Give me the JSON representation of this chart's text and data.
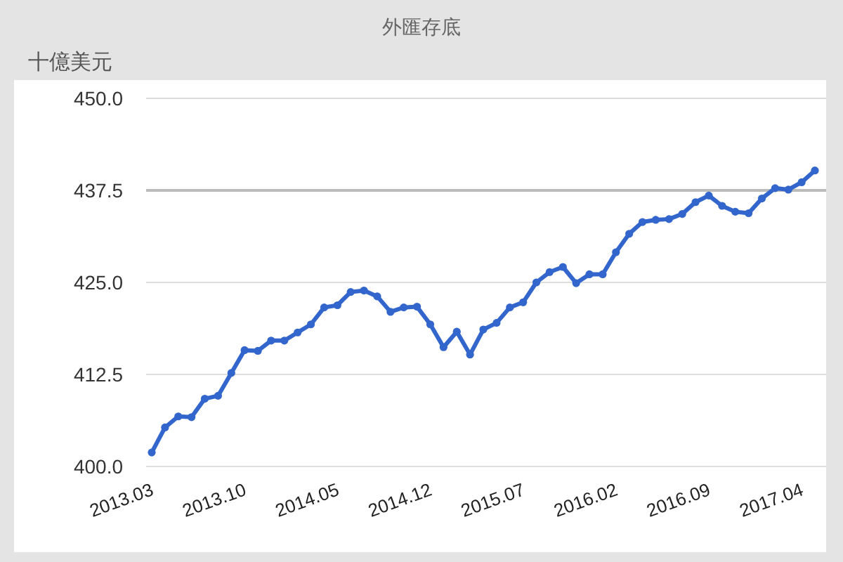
{
  "chart_data": {
    "type": "line",
    "title": "外匯存底",
    "ylabel": "十億美元",
    "categories": [
      "2013.03",
      null,
      null,
      null,
      null,
      null,
      null,
      "2013.10",
      null,
      null,
      null,
      null,
      null,
      null,
      "2014.05",
      null,
      null,
      null,
      null,
      null,
      null,
      "2014.12",
      null,
      null,
      null,
      null,
      null,
      null,
      "2015.07",
      null,
      null,
      null,
      null,
      null,
      null,
      "2016.02",
      null,
      null,
      null,
      null,
      null,
      null,
      "2016.09",
      null,
      null,
      null,
      null,
      null,
      null,
      "2017.04",
      null
    ],
    "series": [
      {
        "color": "#3366cc",
        "values": [
          401.9,
          405.3,
          406.8,
          406.7,
          409.2,
          409.6,
          412.7,
          415.8,
          415.7,
          417.1,
          417.1,
          418.2,
          419.3,
          421.6,
          421.9,
          423.7,
          423.9,
          423.1,
          421.0,
          421.6,
          421.7,
          419.3,
          416.2,
          418.3,
          415.2,
          418.6,
          419.5,
          421.6,
          422.3,
          425.0,
          426.4,
          427.1,
          424.9,
          426.1,
          426.1,
          429.1,
          431.6,
          433.2,
          433.5,
          433.6,
          434.3,
          435.9,
          436.8,
          435.4,
          434.6,
          434.4,
          436.4,
          437.8,
          437.6,
          438.6,
          440.2
        ]
      }
    ],
    "ylim": [
      400,
      450
    ],
    "yticks": [
      {
        "value": 400,
        "label": "400.0"
      },
      {
        "value": 412.5,
        "label": "412.5"
      },
      {
        "value": 425,
        "label": "425.0"
      },
      {
        "value": 437.5,
        "label": "437.5"
      },
      {
        "value": 450,
        "label": "450.0"
      }
    ],
    "ref_lines": [
      {
        "axis": "y",
        "value": 437.5,
        "color": "#bbbbbb"
      }
    ],
    "grid": "y",
    "marker": "circle",
    "line_style": "solid"
  }
}
